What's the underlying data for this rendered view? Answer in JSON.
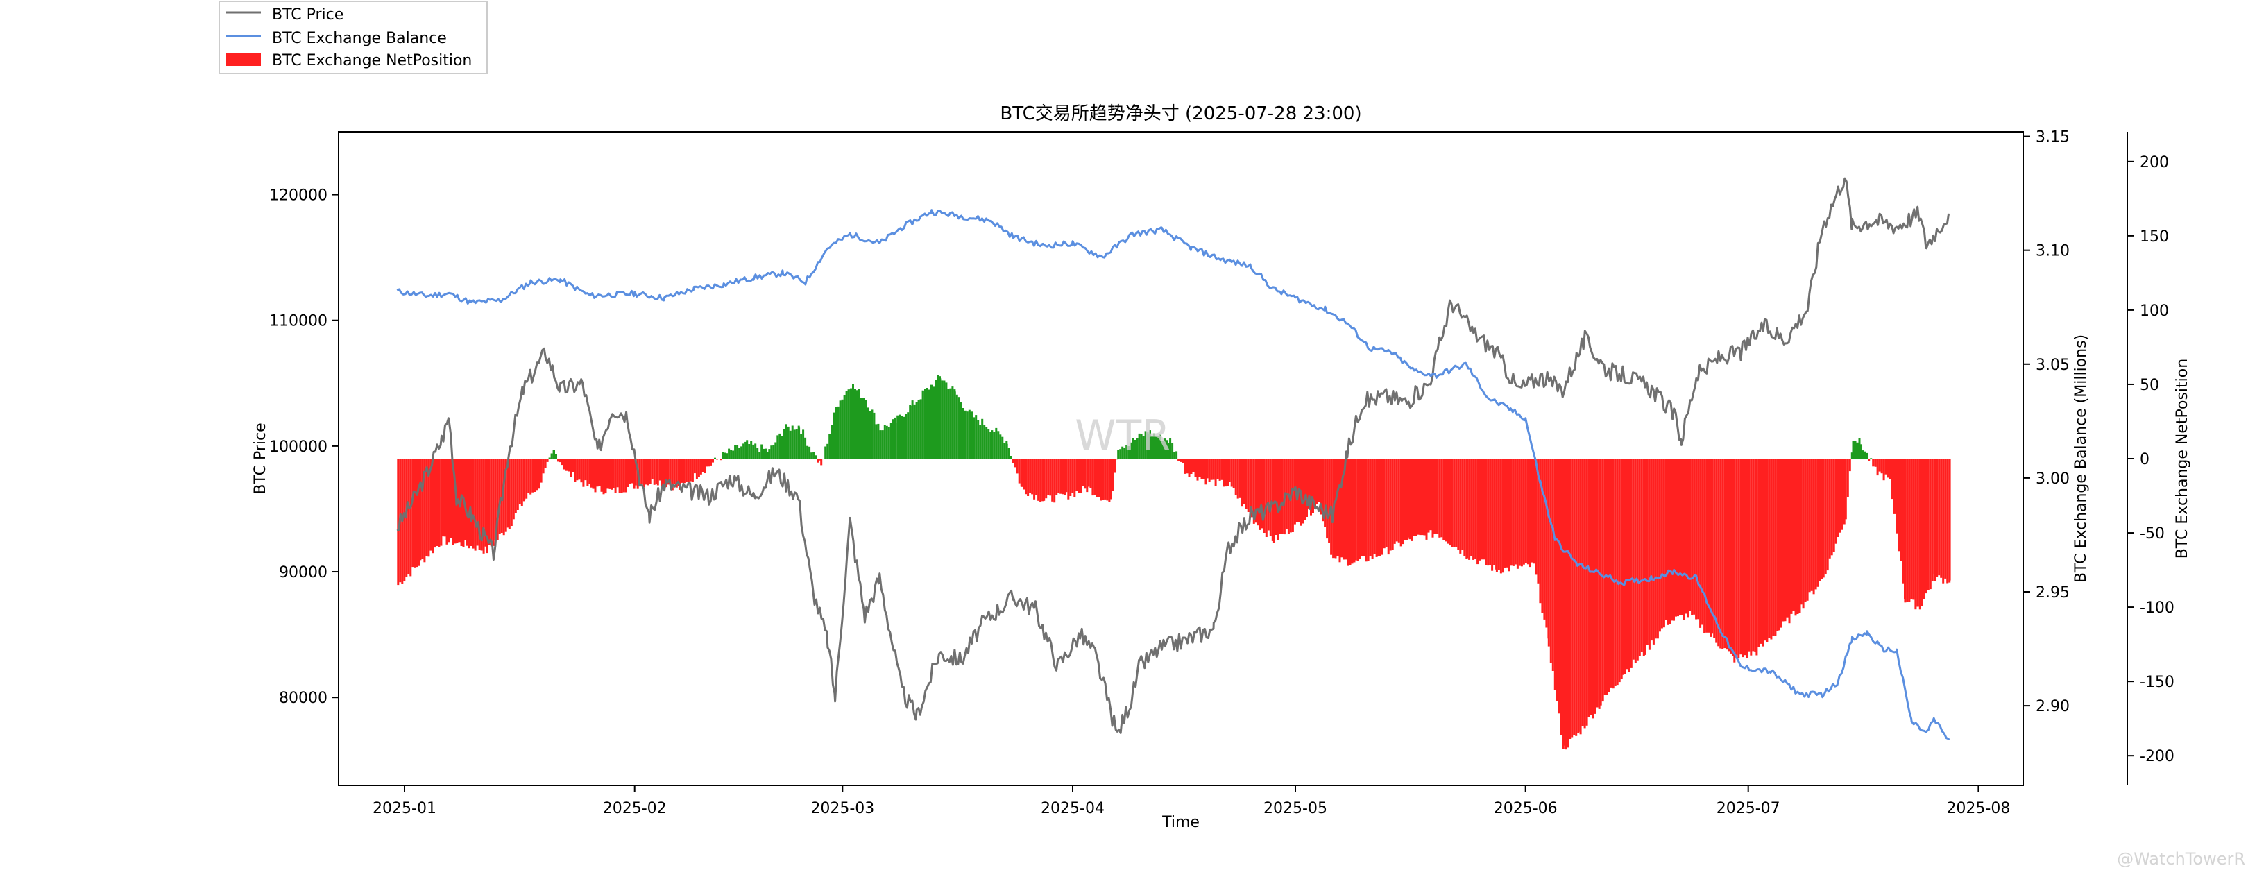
{
  "chart_data": {
    "type": "line",
    "title": "BTC交易所趋势净头寸 (2025-07-28 23:00)",
    "xlabel": "Time",
    "ylabel_left": "BTC Price",
    "ylabel_right1": "BTC Exchange Balance (Millions)",
    "ylabel_right2": "BTC Exchange NetPosition",
    "x_ticks": [
      "2025-01",
      "2025-02",
      "2025-03",
      "2025-04",
      "2025-05",
      "2025-06",
      "2025-07",
      "2025-08"
    ],
    "y_left_ticks": [
      "80000",
      "90000",
      "100000",
      "110000",
      "120000"
    ],
    "y_right1_ticks": [
      "2.90",
      "2.95",
      "3.00",
      "3.05",
      "3.10",
      "3.15"
    ],
    "y_right2_ticks": [
      "-200",
      "-150",
      "-100",
      "-50",
      "0",
      "50",
      "100",
      "150",
      "200"
    ],
    "ylim_left": [
      73000,
      125000
    ],
    "ylim_right1": [
      2.865,
      3.152
    ],
    "ylim_right2": [
      -220,
      220
    ],
    "legend": {
      "placement": "top-left",
      "entries": [
        "BTC Price",
        "BTC Exchange Balance",
        "BTC Exchange NetPosition"
      ]
    },
    "watermark": "WTR",
    "grid": false,
    "colors": {
      "price": "#707070",
      "balance": "#5b8fe0",
      "net_pos": "#ff2020",
      "net_neg": "#1e9b1e"
    },
    "series": [
      {
        "name": "BTC Price",
        "axis": "left",
        "points": [
          [
            "2024-12-31",
            93500
          ],
          [
            "2025-01-02",
            95500
          ],
          [
            "2025-01-04",
            97800
          ],
          [
            "2025-01-06",
            100500
          ],
          [
            "2025-01-07",
            102300
          ],
          [
            "2025-01-08",
            96000
          ],
          [
            "2025-01-10",
            94500
          ],
          [
            "2025-01-13",
            91500
          ],
          [
            "2025-01-15",
            99500
          ],
          [
            "2025-01-17",
            104500
          ],
          [
            "2025-01-20",
            107500
          ],
          [
            "2025-01-22",
            104500
          ],
          [
            "2025-01-25",
            105000
          ],
          [
            "2025-01-27",
            99500
          ],
          [
            "2025-01-29",
            103000
          ],
          [
            "2025-01-31",
            102500
          ],
          [
            "2025-02-02",
            96500
          ],
          [
            "2025-02-03",
            94500
          ],
          [
            "2025-02-05",
            97000
          ],
          [
            "2025-02-08",
            96500
          ],
          [
            "2025-02-11",
            96000
          ],
          [
            "2025-02-14",
            97500
          ],
          [
            "2025-02-17",
            96000
          ],
          [
            "2025-02-20",
            98000
          ],
          [
            "2025-02-23",
            96000
          ],
          [
            "2025-02-25",
            88500
          ],
          [
            "2025-02-27",
            84500
          ],
          [
            "2025-02-28",
            80000
          ],
          [
            "2025-03-02",
            94000
          ],
          [
            "2025-03-04",
            86500
          ],
          [
            "2025-03-06",
            89500
          ],
          [
            "2025-03-09",
            80500
          ],
          [
            "2025-03-11",
            78500
          ],
          [
            "2025-03-14",
            83500
          ],
          [
            "2025-03-17",
            83000
          ],
          [
            "2025-03-20",
            86000
          ],
          [
            "2025-03-24",
            88000
          ],
          [
            "2025-03-27",
            87000
          ],
          [
            "2025-03-30",
            82500
          ],
          [
            "2025-04-02",
            85000
          ],
          [
            "2025-04-04",
            83500
          ],
          [
            "2025-04-07",
            77000
          ],
          [
            "2025-04-09",
            80000
          ],
          [
            "2025-04-10",
            82500
          ],
          [
            "2025-04-13",
            84000
          ],
          [
            "2025-04-16",
            84500
          ],
          [
            "2025-04-20",
            85500
          ],
          [
            "2025-04-22",
            92000
          ],
          [
            "2025-04-25",
            94500
          ],
          [
            "2025-04-28",
            95000
          ],
          [
            "2025-05-01",
            96500
          ],
          [
            "2025-05-03",
            95500
          ],
          [
            "2025-05-06",
            94500
          ],
          [
            "2025-05-08",
            99500
          ],
          [
            "2025-05-10",
            103500
          ],
          [
            "2025-05-13",
            104000
          ],
          [
            "2025-05-16",
            103500
          ],
          [
            "2025-05-19",
            105000
          ],
          [
            "2025-05-22",
            111500
          ],
          [
            "2025-05-25",
            109000
          ],
          [
            "2025-05-28",
            107500
          ],
          [
            "2025-05-31",
            104500
          ],
          [
            "2025-06-03",
            105500
          ],
          [
            "2025-06-06",
            104500
          ],
          [
            "2025-06-09",
            108500
          ],
          [
            "2025-06-12",
            106000
          ],
          [
            "2025-06-15",
            105500
          ],
          [
            "2025-06-18",
            104500
          ],
          [
            "2025-06-21",
            102500
          ],
          [
            "2025-06-22",
            100500
          ],
          [
            "2025-06-24",
            105500
          ],
          [
            "2025-06-27",
            107000
          ],
          [
            "2025-06-30",
            107500
          ],
          [
            "2025-07-03",
            109500
          ],
          [
            "2025-07-06",
            108500
          ],
          [
            "2025-07-09",
            111000
          ],
          [
            "2025-07-11",
            117500
          ],
          [
            "2025-07-14",
            121500
          ],
          [
            "2025-07-15",
            117500
          ],
          [
            "2025-07-18",
            118000
          ],
          [
            "2025-07-21",
            117500
          ],
          [
            "2025-07-24",
            118500
          ],
          [
            "2025-07-25",
            116000
          ],
          [
            "2025-07-28",
            118500
          ]
        ]
      },
      {
        "name": "BTC Exchange Balance",
        "axis": "right1",
        "points": [
          [
            "2024-12-31",
            3.082
          ],
          [
            "2025-01-04",
            3.08
          ],
          [
            "2025-01-07",
            3.081
          ],
          [
            "2025-01-10",
            3.077
          ],
          [
            "2025-01-14",
            3.078
          ],
          [
            "2025-01-18",
            3.086
          ],
          [
            "2025-01-22",
            3.087
          ],
          [
            "2025-01-26",
            3.08
          ],
          [
            "2025-02-01",
            3.081
          ],
          [
            "2025-02-05",
            3.079
          ],
          [
            "2025-02-09",
            3.083
          ],
          [
            "2025-02-13",
            3.085
          ],
          [
            "2025-02-17",
            3.088
          ],
          [
            "2025-02-21",
            3.09
          ],
          [
            "2025-02-24",
            3.086
          ],
          [
            "2025-02-27",
            3.101
          ],
          [
            "2025-03-02",
            3.107
          ],
          [
            "2025-03-06",
            3.103
          ],
          [
            "2025-03-09",
            3.11
          ],
          [
            "2025-03-13",
            3.117
          ],
          [
            "2025-03-17",
            3.115
          ],
          [
            "2025-03-21",
            3.113
          ],
          [
            "2025-03-24",
            3.106
          ],
          [
            "2025-03-28",
            3.102
          ],
          [
            "2025-04-01",
            3.103
          ],
          [
            "2025-04-05",
            3.097
          ],
          [
            "2025-04-09",
            3.107
          ],
          [
            "2025-04-13",
            3.109
          ],
          [
            "2025-04-17",
            3.101
          ],
          [
            "2025-04-21",
            3.096
          ],
          [
            "2025-04-25",
            3.093
          ],
          [
            "2025-04-28",
            3.083
          ],
          [
            "2025-05-01",
            3.079
          ],
          [
            "2025-05-05",
            3.074
          ],
          [
            "2025-05-08",
            3.068
          ],
          [
            "2025-05-11",
            3.057
          ],
          [
            "2025-05-14",
            3.055
          ],
          [
            "2025-05-17",
            3.047
          ],
          [
            "2025-05-20",
            3.045
          ],
          [
            "2025-05-24",
            3.05
          ],
          [
            "2025-05-27",
            3.035
          ],
          [
            "2025-05-30",
            3.03
          ],
          [
            "2025-06-01",
            3.026
          ],
          [
            "2025-06-03",
            2.998
          ],
          [
            "2025-06-05",
            2.973
          ],
          [
            "2025-06-08",
            2.962
          ],
          [
            "2025-06-11",
            2.958
          ],
          [
            "2025-06-14",
            2.954
          ],
          [
            "2025-06-18",
            2.956
          ],
          [
            "2025-06-21",
            2.959
          ],
          [
            "2025-06-24",
            2.956
          ],
          [
            "2025-06-27",
            2.935
          ],
          [
            "2025-06-30",
            2.917
          ],
          [
            "2025-07-04",
            2.915
          ],
          [
            "2025-07-08",
            2.905
          ],
          [
            "2025-07-11",
            2.905
          ],
          [
            "2025-07-13",
            2.91
          ],
          [
            "2025-07-15",
            2.929
          ],
          [
            "2025-07-17",
            2.932
          ],
          [
            "2025-07-19",
            2.925
          ],
          [
            "2025-07-21",
            2.924
          ],
          [
            "2025-07-23",
            2.893
          ],
          [
            "2025-07-25",
            2.888
          ],
          [
            "2025-07-26",
            2.894
          ],
          [
            "2025-07-28",
            2.885
          ]
        ]
      },
      {
        "name": "BTC Exchange NetPosition",
        "axis": "right2",
        "type": "bar",
        "points": [
          [
            "2024-12-31",
            -85
          ],
          [
            "2025-01-03",
            -70
          ],
          [
            "2025-01-06",
            -55
          ],
          [
            "2025-01-09",
            -58
          ],
          [
            "2025-01-12",
            -62
          ],
          [
            "2025-01-15",
            -45
          ],
          [
            "2025-01-17",
            -28
          ],
          [
            "2025-01-19",
            -18
          ],
          [
            "2025-01-21",
            5
          ],
          [
            "2025-01-23",
            -10
          ],
          [
            "2025-01-26",
            -20
          ],
          [
            "2025-01-29",
            -22
          ],
          [
            "2025-02-01",
            -18
          ],
          [
            "2025-02-04",
            -15
          ],
          [
            "2025-02-07",
            -20
          ],
          [
            "2025-02-10",
            -8
          ],
          [
            "2025-02-13",
            3
          ],
          [
            "2025-02-16",
            10
          ],
          [
            "2025-02-19",
            5
          ],
          [
            "2025-02-21",
            20
          ],
          [
            "2025-02-23",
            22
          ],
          [
            "2025-02-25",
            3
          ],
          [
            "2025-02-26",
            -5
          ],
          [
            "2025-02-28",
            35
          ],
          [
            "2025-03-02",
            50
          ],
          [
            "2025-03-04",
            40
          ],
          [
            "2025-03-06",
            20
          ],
          [
            "2025-03-08",
            25
          ],
          [
            "2025-03-10",
            35
          ],
          [
            "2025-03-12",
            45
          ],
          [
            "2025-03-14",
            55
          ],
          [
            "2025-03-16",
            45
          ],
          [
            "2025-03-18",
            30
          ],
          [
            "2025-03-21",
            20
          ],
          [
            "2025-03-23",
            12
          ],
          [
            "2025-03-25",
            -20
          ],
          [
            "2025-03-28",
            -28
          ],
          [
            "2025-03-31",
            -25
          ],
          [
            "2025-04-03",
            -20
          ],
          [
            "2025-04-06",
            -30
          ],
          [
            "2025-04-07",
            8
          ],
          [
            "2025-04-09",
            12
          ],
          [
            "2025-04-11",
            18
          ],
          [
            "2025-04-14",
            12
          ],
          [
            "2025-04-16",
            -8
          ],
          [
            "2025-04-19",
            -15
          ],
          [
            "2025-04-22",
            -18
          ],
          [
            "2025-04-25",
            -40
          ],
          [
            "2025-04-28",
            -55
          ],
          [
            "2025-05-01",
            -45
          ],
          [
            "2025-05-04",
            -30
          ],
          [
            "2025-05-06",
            -68
          ],
          [
            "2025-05-09",
            -70
          ],
          [
            "2025-05-12",
            -65
          ],
          [
            "2025-05-16",
            -55
          ],
          [
            "2025-05-20",
            -50
          ],
          [
            "2025-05-24",
            -65
          ],
          [
            "2025-05-28",
            -75
          ],
          [
            "2025-06-02",
            -72
          ],
          [
            "2025-06-04",
            -125
          ],
          [
            "2025-06-06",
            -195
          ],
          [
            "2025-06-08",
            -185
          ],
          [
            "2025-06-11",
            -165
          ],
          [
            "2025-06-14",
            -145
          ],
          [
            "2025-06-17",
            -130
          ],
          [
            "2025-06-20",
            -110
          ],
          [
            "2025-06-23",
            -105
          ],
          [
            "2025-06-26",
            -120
          ],
          [
            "2025-06-29",
            -135
          ],
          [
            "2025-07-02",
            -130
          ],
          [
            "2025-07-05",
            -115
          ],
          [
            "2025-07-08",
            -100
          ],
          [
            "2025-07-11",
            -80
          ],
          [
            "2025-07-14",
            -40
          ],
          [
            "2025-07-15",
            15
          ],
          [
            "2025-07-16",
            10
          ],
          [
            "2025-07-18",
            -8
          ],
          [
            "2025-07-20",
            -15
          ],
          [
            "2025-07-22",
            -95
          ],
          [
            "2025-07-24",
            -100
          ],
          [
            "2025-07-26",
            -80
          ],
          [
            "2025-07-28",
            -82
          ]
        ]
      }
    ]
  },
  "credit": "@WatchTowerR"
}
